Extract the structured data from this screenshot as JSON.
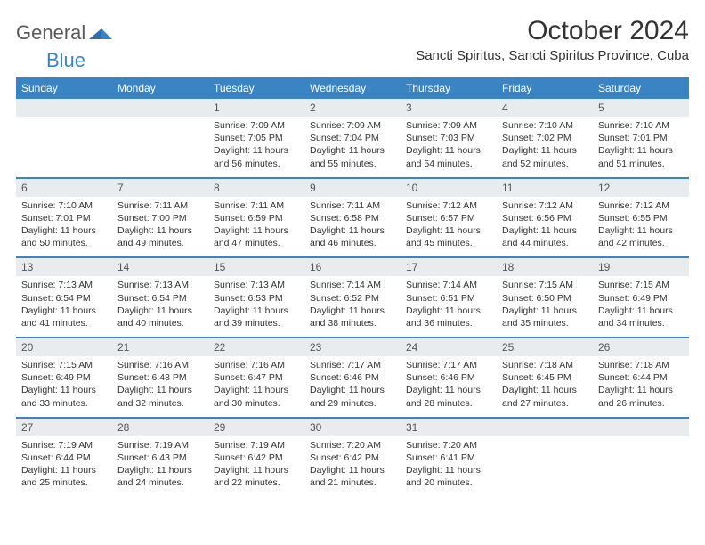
{
  "brand": {
    "general": "General",
    "blue": "Blue"
  },
  "title": {
    "month": "October 2024",
    "location": "Sancti Spiritus, Sancti Spiritus Province, Cuba"
  },
  "colors": {
    "accent": "#3a84c4",
    "header_bg": "#3a84c4",
    "header_fg": "#ffffff",
    "daynum_bg": "#e9ecef",
    "text": "#333333"
  },
  "daynames": [
    "Sunday",
    "Monday",
    "Tuesday",
    "Wednesday",
    "Thursday",
    "Friday",
    "Saturday"
  ],
  "weeks": [
    [
      null,
      null,
      {
        "n": "1",
        "sr": "Sunrise: 7:09 AM",
        "ss": "Sunset: 7:05 PM",
        "dl": "Daylight: 11 hours and 56 minutes."
      },
      {
        "n": "2",
        "sr": "Sunrise: 7:09 AM",
        "ss": "Sunset: 7:04 PM",
        "dl": "Daylight: 11 hours and 55 minutes."
      },
      {
        "n": "3",
        "sr": "Sunrise: 7:09 AM",
        "ss": "Sunset: 7:03 PM",
        "dl": "Daylight: 11 hours and 54 minutes."
      },
      {
        "n": "4",
        "sr": "Sunrise: 7:10 AM",
        "ss": "Sunset: 7:02 PM",
        "dl": "Daylight: 11 hours and 52 minutes."
      },
      {
        "n": "5",
        "sr": "Sunrise: 7:10 AM",
        "ss": "Sunset: 7:01 PM",
        "dl": "Daylight: 11 hours and 51 minutes."
      }
    ],
    [
      {
        "n": "6",
        "sr": "Sunrise: 7:10 AM",
        "ss": "Sunset: 7:01 PM",
        "dl": "Daylight: 11 hours and 50 minutes."
      },
      {
        "n": "7",
        "sr": "Sunrise: 7:11 AM",
        "ss": "Sunset: 7:00 PM",
        "dl": "Daylight: 11 hours and 49 minutes."
      },
      {
        "n": "8",
        "sr": "Sunrise: 7:11 AM",
        "ss": "Sunset: 6:59 PM",
        "dl": "Daylight: 11 hours and 47 minutes."
      },
      {
        "n": "9",
        "sr": "Sunrise: 7:11 AM",
        "ss": "Sunset: 6:58 PM",
        "dl": "Daylight: 11 hours and 46 minutes."
      },
      {
        "n": "10",
        "sr": "Sunrise: 7:12 AM",
        "ss": "Sunset: 6:57 PM",
        "dl": "Daylight: 11 hours and 45 minutes."
      },
      {
        "n": "11",
        "sr": "Sunrise: 7:12 AM",
        "ss": "Sunset: 6:56 PM",
        "dl": "Daylight: 11 hours and 44 minutes."
      },
      {
        "n": "12",
        "sr": "Sunrise: 7:12 AM",
        "ss": "Sunset: 6:55 PM",
        "dl": "Daylight: 11 hours and 42 minutes."
      }
    ],
    [
      {
        "n": "13",
        "sr": "Sunrise: 7:13 AM",
        "ss": "Sunset: 6:54 PM",
        "dl": "Daylight: 11 hours and 41 minutes."
      },
      {
        "n": "14",
        "sr": "Sunrise: 7:13 AM",
        "ss": "Sunset: 6:54 PM",
        "dl": "Daylight: 11 hours and 40 minutes."
      },
      {
        "n": "15",
        "sr": "Sunrise: 7:13 AM",
        "ss": "Sunset: 6:53 PM",
        "dl": "Daylight: 11 hours and 39 minutes."
      },
      {
        "n": "16",
        "sr": "Sunrise: 7:14 AM",
        "ss": "Sunset: 6:52 PM",
        "dl": "Daylight: 11 hours and 38 minutes."
      },
      {
        "n": "17",
        "sr": "Sunrise: 7:14 AM",
        "ss": "Sunset: 6:51 PM",
        "dl": "Daylight: 11 hours and 36 minutes."
      },
      {
        "n": "18",
        "sr": "Sunrise: 7:15 AM",
        "ss": "Sunset: 6:50 PM",
        "dl": "Daylight: 11 hours and 35 minutes."
      },
      {
        "n": "19",
        "sr": "Sunrise: 7:15 AM",
        "ss": "Sunset: 6:49 PM",
        "dl": "Daylight: 11 hours and 34 minutes."
      }
    ],
    [
      {
        "n": "20",
        "sr": "Sunrise: 7:15 AM",
        "ss": "Sunset: 6:49 PM",
        "dl": "Daylight: 11 hours and 33 minutes."
      },
      {
        "n": "21",
        "sr": "Sunrise: 7:16 AM",
        "ss": "Sunset: 6:48 PM",
        "dl": "Daylight: 11 hours and 32 minutes."
      },
      {
        "n": "22",
        "sr": "Sunrise: 7:16 AM",
        "ss": "Sunset: 6:47 PM",
        "dl": "Daylight: 11 hours and 30 minutes."
      },
      {
        "n": "23",
        "sr": "Sunrise: 7:17 AM",
        "ss": "Sunset: 6:46 PM",
        "dl": "Daylight: 11 hours and 29 minutes."
      },
      {
        "n": "24",
        "sr": "Sunrise: 7:17 AM",
        "ss": "Sunset: 6:46 PM",
        "dl": "Daylight: 11 hours and 28 minutes."
      },
      {
        "n": "25",
        "sr": "Sunrise: 7:18 AM",
        "ss": "Sunset: 6:45 PM",
        "dl": "Daylight: 11 hours and 27 minutes."
      },
      {
        "n": "26",
        "sr": "Sunrise: 7:18 AM",
        "ss": "Sunset: 6:44 PM",
        "dl": "Daylight: 11 hours and 26 minutes."
      }
    ],
    [
      {
        "n": "27",
        "sr": "Sunrise: 7:19 AM",
        "ss": "Sunset: 6:44 PM",
        "dl": "Daylight: 11 hours and 25 minutes."
      },
      {
        "n": "28",
        "sr": "Sunrise: 7:19 AM",
        "ss": "Sunset: 6:43 PM",
        "dl": "Daylight: 11 hours and 24 minutes."
      },
      {
        "n": "29",
        "sr": "Sunrise: 7:19 AM",
        "ss": "Sunset: 6:42 PM",
        "dl": "Daylight: 11 hours and 22 minutes."
      },
      {
        "n": "30",
        "sr": "Sunrise: 7:20 AM",
        "ss": "Sunset: 6:42 PM",
        "dl": "Daylight: 11 hours and 21 minutes."
      },
      {
        "n": "31",
        "sr": "Sunrise: 7:20 AM",
        "ss": "Sunset: 6:41 PM",
        "dl": "Daylight: 11 hours and 20 minutes."
      },
      null,
      null
    ]
  ]
}
